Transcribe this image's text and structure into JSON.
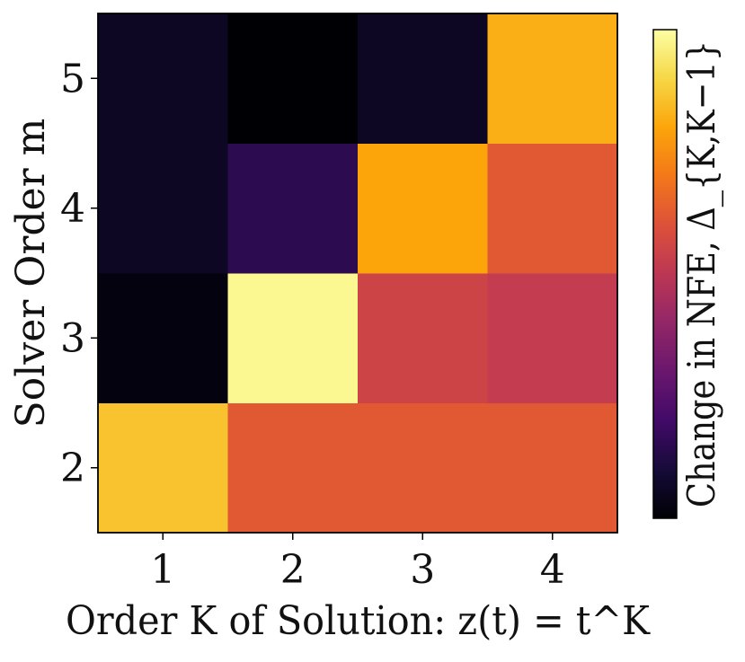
{
  "chart_data": {
    "type": "heatmap",
    "x": [
      "1",
      "2",
      "3",
      "4"
    ],
    "y": [
      "2",
      "3",
      "4",
      "5"
    ],
    "values": [
      [
        0.86,
        0.62,
        0.62,
        0.62
      ],
      [
        0.02,
        0.98,
        0.55,
        0.52
      ],
      [
        0.06,
        0.15,
        0.8,
        0.62
      ],
      [
        0.06,
        0.0,
        0.06,
        0.82
      ]
    ],
    "xlabel": "Order K of Solution: z(t) = t^K",
    "ylabel": "Solver Order m",
    "colorbar_label": "Change in NFE, Δ_{K,K−1}",
    "colormap": "inferno",
    "vlim": [
      0,
      1
    ],
    "colorbar_ticks": []
  }
}
